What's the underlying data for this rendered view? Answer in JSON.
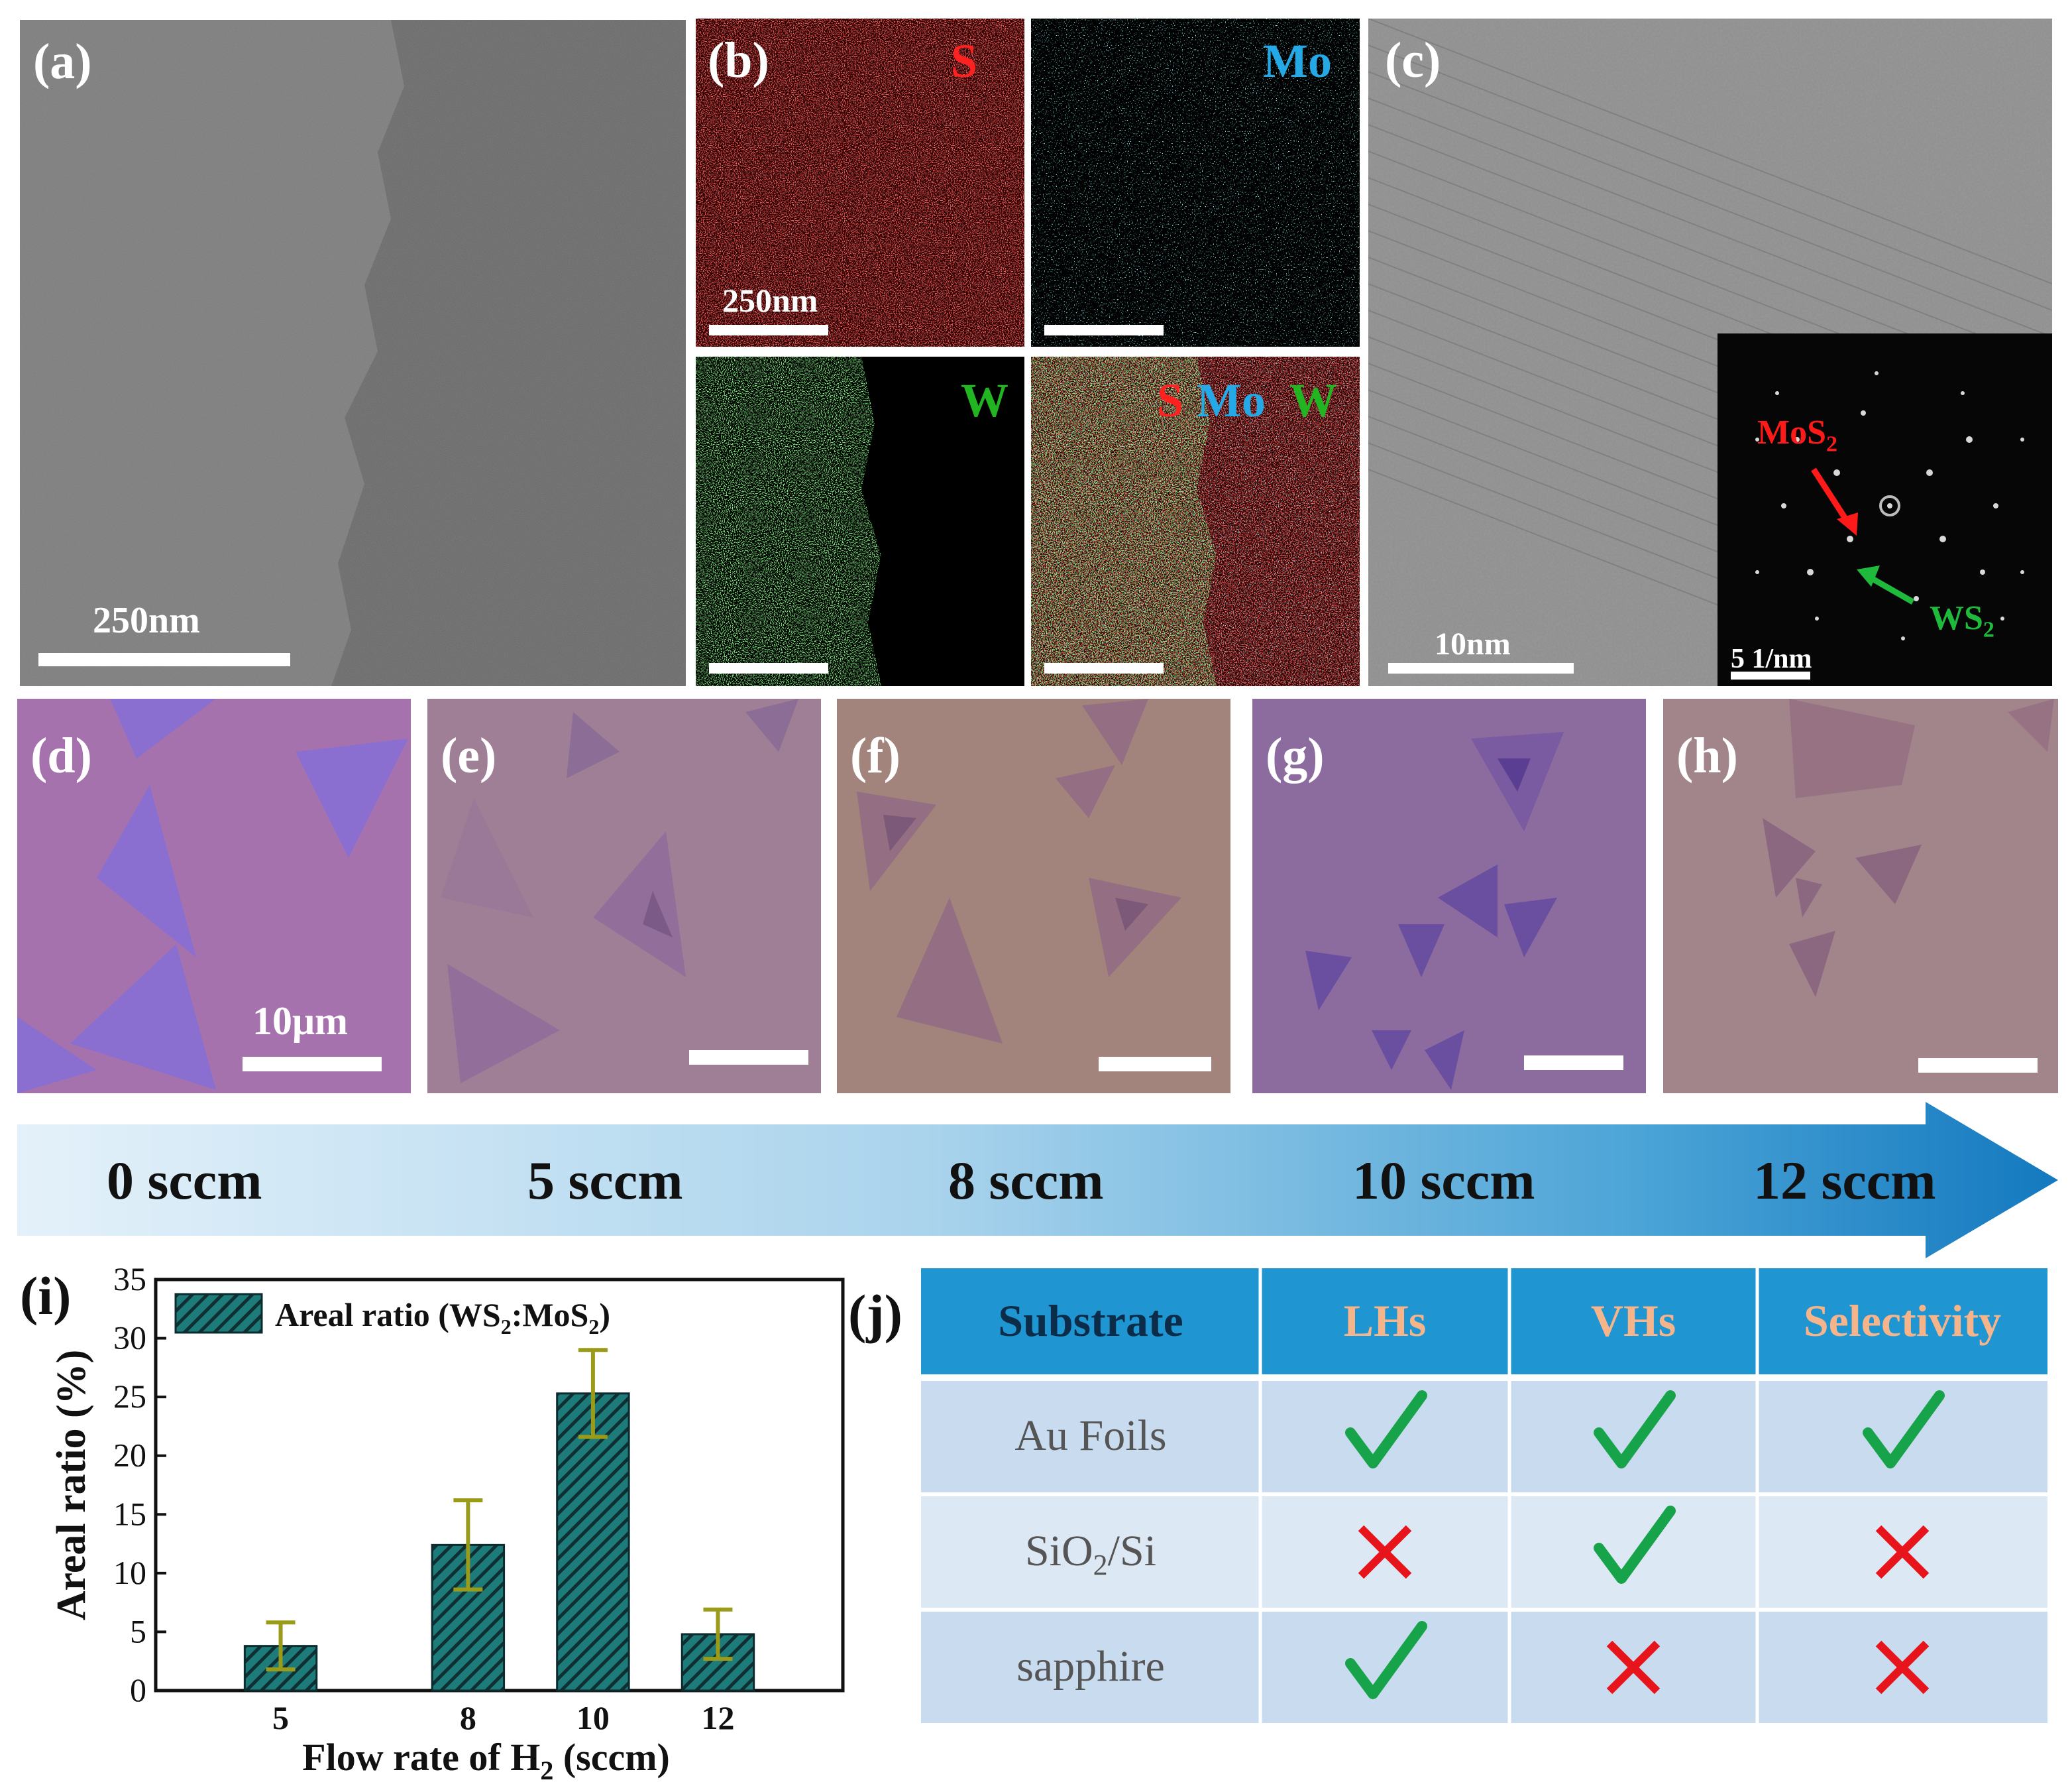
{
  "panels": {
    "a": {
      "label": "(a)",
      "scale": "250nm"
    },
    "b": {
      "label": "(b)",
      "scale": "250nm",
      "el_s": "S",
      "el_mo": "Mo",
      "el_w": "W",
      "overlay_s": "S",
      "overlay_mo": "Mo",
      "overlay_w": "W"
    },
    "c": {
      "label": "(c)",
      "scale": "10nm",
      "inset_scale": "5 1/nm",
      "mos2_prefix": "MoS",
      "mos2_sub": "2",
      "ws2_prefix": "WS",
      "ws2_sub": "2"
    },
    "d": {
      "label": "(d)",
      "scale": "10μm"
    },
    "e": {
      "label": "(e)"
    },
    "f": {
      "label": "(f)"
    },
    "g": {
      "label": "(g)"
    },
    "h": {
      "label": "(h)"
    }
  },
  "flow_arrow": {
    "labels": [
      "0 sccm",
      "5 sccm",
      "8 sccm",
      "10 sccm",
      "12 sccm"
    ]
  },
  "chart_label": "(i)",
  "chart_data": {
    "type": "bar",
    "categories": [
      "5",
      "8",
      "10",
      "12"
    ],
    "x": [
      5,
      8,
      10,
      12
    ],
    "values": [
      3.8,
      12.4,
      25.3,
      4.8
    ],
    "errors": [
      2.0,
      3.8,
      3.7,
      2.1
    ],
    "xlabel_prefix": "Flow rate of H",
    "xlabel_sub": "2",
    "xlabel_suffix": " (sccm)",
    "ylabel": "Areal ratio (%)",
    "legend_prefix": "Areal ratio (WS",
    "legend_mid": ":MoS",
    "legend_suffix": ")",
    "legend_sub": "2",
    "ylim": [
      0,
      35
    ],
    "yticks": [
      0,
      5,
      10,
      15,
      20,
      25,
      30,
      35
    ],
    "xlim": [
      3,
      14
    ],
    "bar_color": "#1d7b7a",
    "error_color": "#9b9b1a",
    "legend_position": "top-left"
  },
  "table": {
    "label": "(j)",
    "headers": [
      "Substrate",
      "LHs",
      "VHs",
      "Selectivity"
    ],
    "rows": [
      {
        "substrate": "Au Foils",
        "cells": [
          "check",
          "check",
          "check"
        ]
      },
      {
        "substrate_prefix": "SiO",
        "substrate_sub": "2",
        "substrate_suffix": "/Si",
        "cells": [
          "cross",
          "check",
          "cross"
        ]
      },
      {
        "substrate": "sapphire",
        "cells": [
          "check",
          "cross",
          "cross"
        ]
      }
    ],
    "check_color": "#17a34a",
    "cross_color": "#e8141b",
    "header_bg": "#1f95d1"
  }
}
